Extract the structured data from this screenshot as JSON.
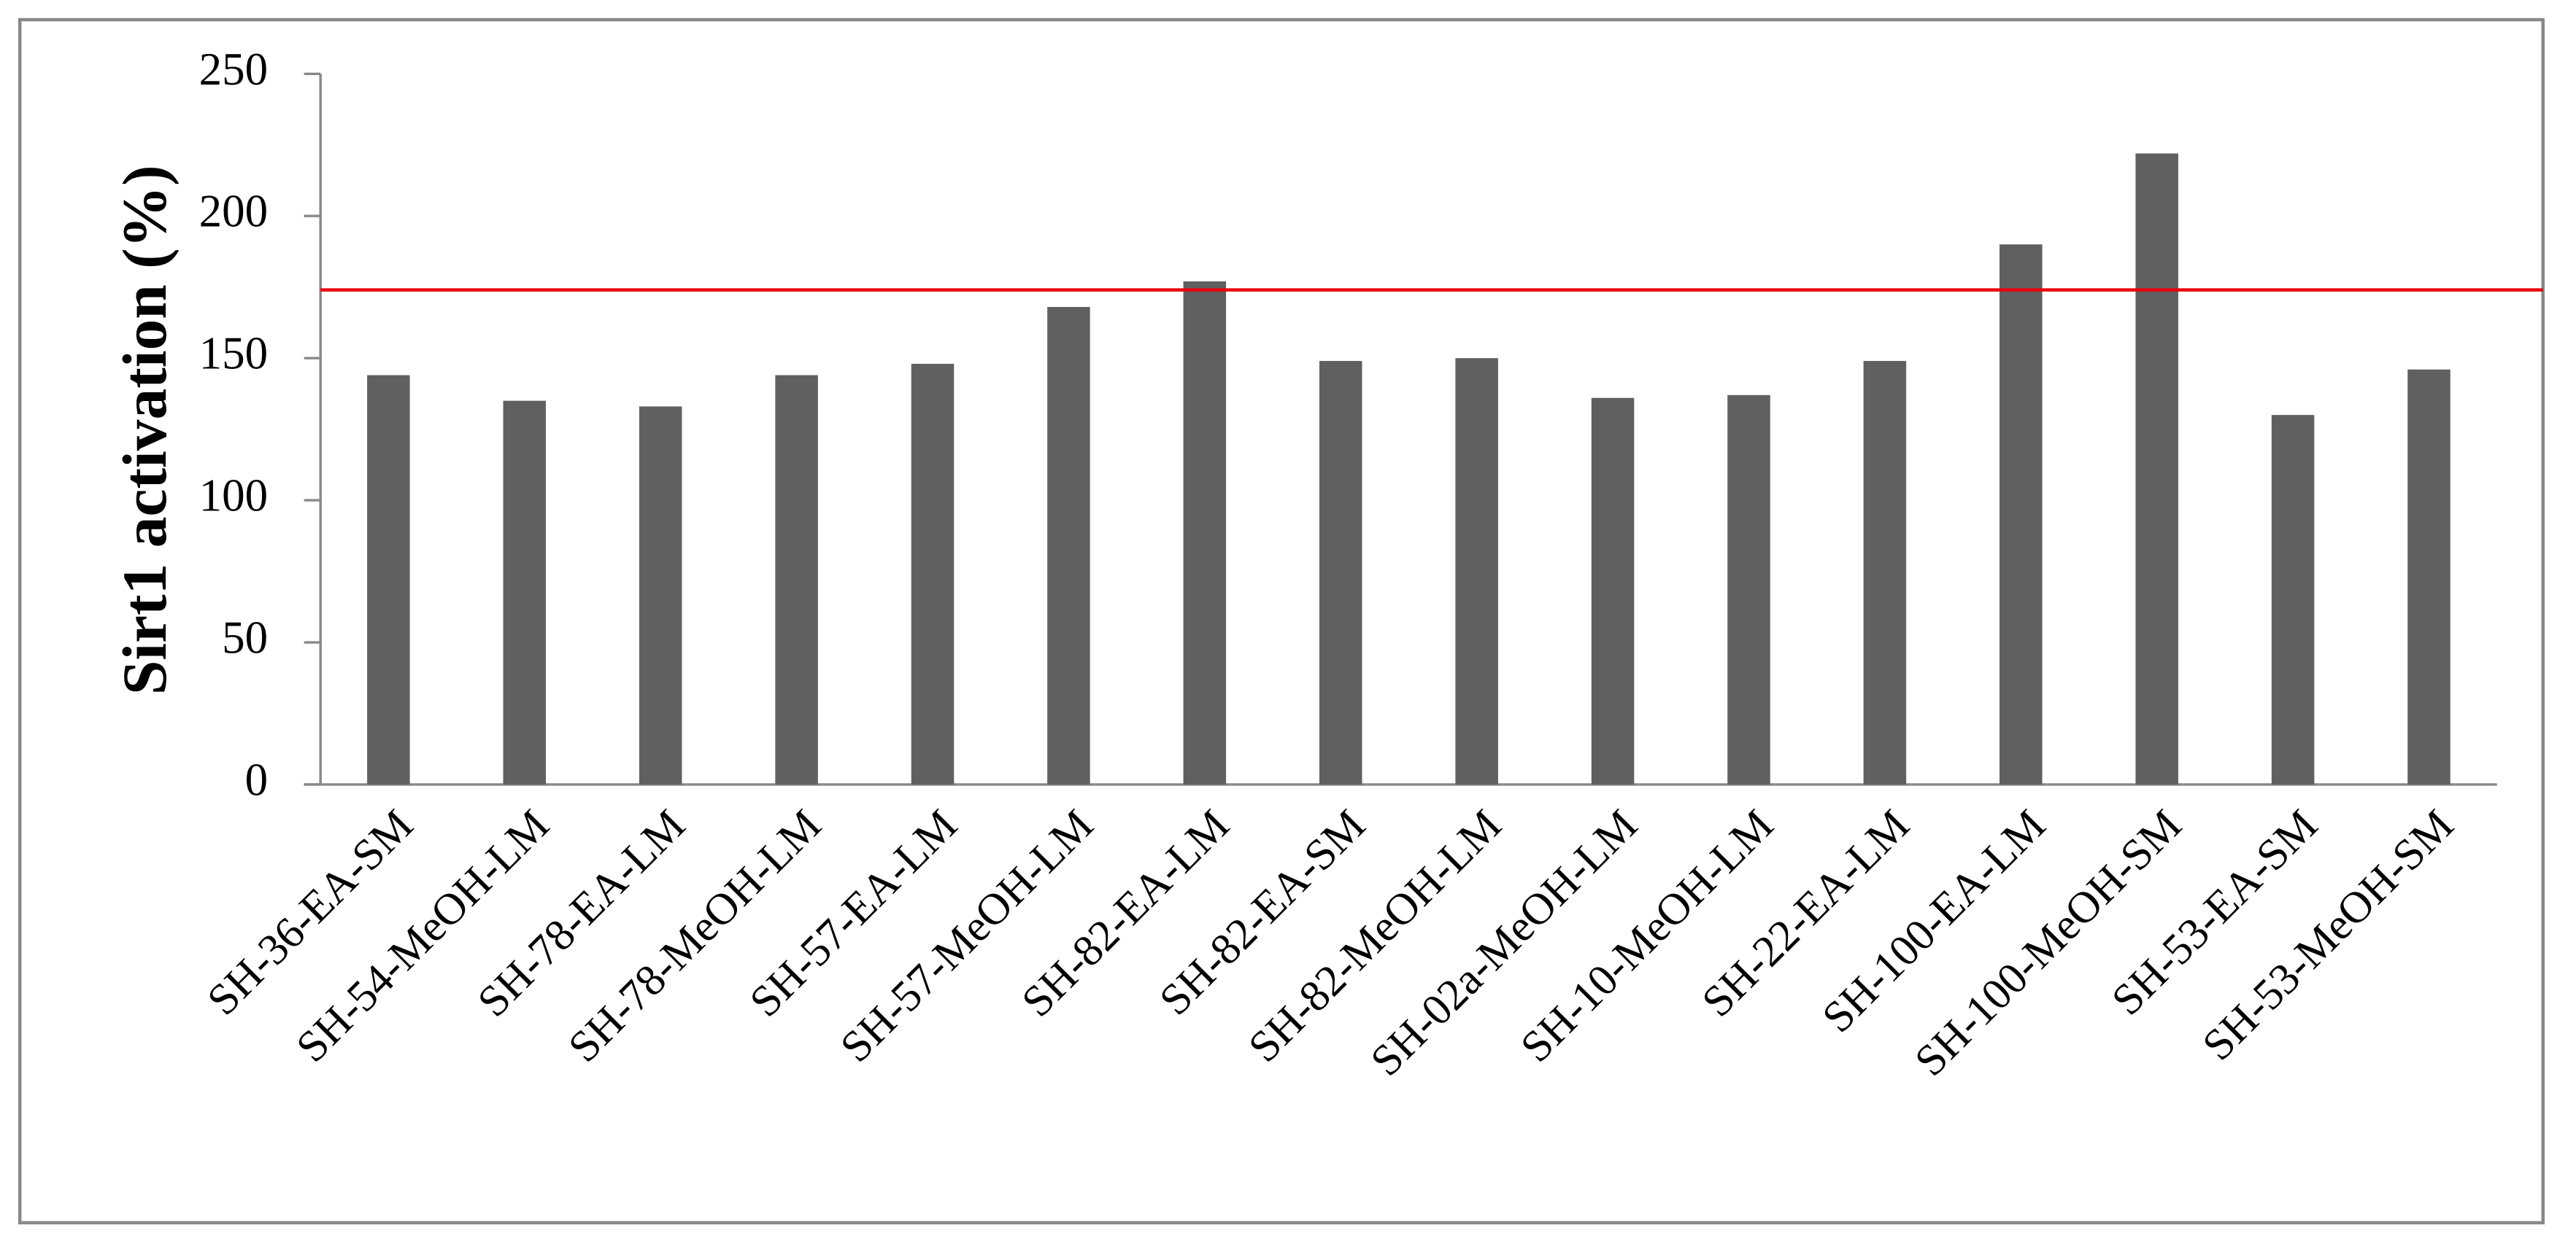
{
  "chart_data": {
    "type": "bar",
    "y_label": "Sirt1 activation (%)",
    "categories": [
      "SH-36-EA-SM",
      "SH-54-MeOH-LM",
      "SH-78-EA-LM",
      "SH-78-MeOH-LM",
      "SH-57-EA-LM",
      "SH-57-MeOH-LM",
      "SH-82-EA-LM",
      "SH-82-EA-SM",
      "SH-82-MeOH-LM",
      "SH-02a-MeOH-LM",
      "SH-10-MeOH-LM",
      "SH-22-EA-LM",
      "SH-100-EA-LM",
      "SH-100-MeOH-SM",
      "SH-53-EA-SM",
      "SH-53-MeOH-SM"
    ],
    "values": [
      144,
      135,
      133,
      144,
      148,
      168,
      177,
      149,
      150,
      136,
      137,
      149,
      190,
      222,
      130,
      146
    ],
    "color": "#606060",
    "ylim": [
      0,
      250
    ],
    "yticks": [
      0,
      50,
      100,
      150,
      200,
      250
    ],
    "grid": false,
    "reference_line": {
      "value": 174,
      "color": "#e8000b"
    }
  }
}
